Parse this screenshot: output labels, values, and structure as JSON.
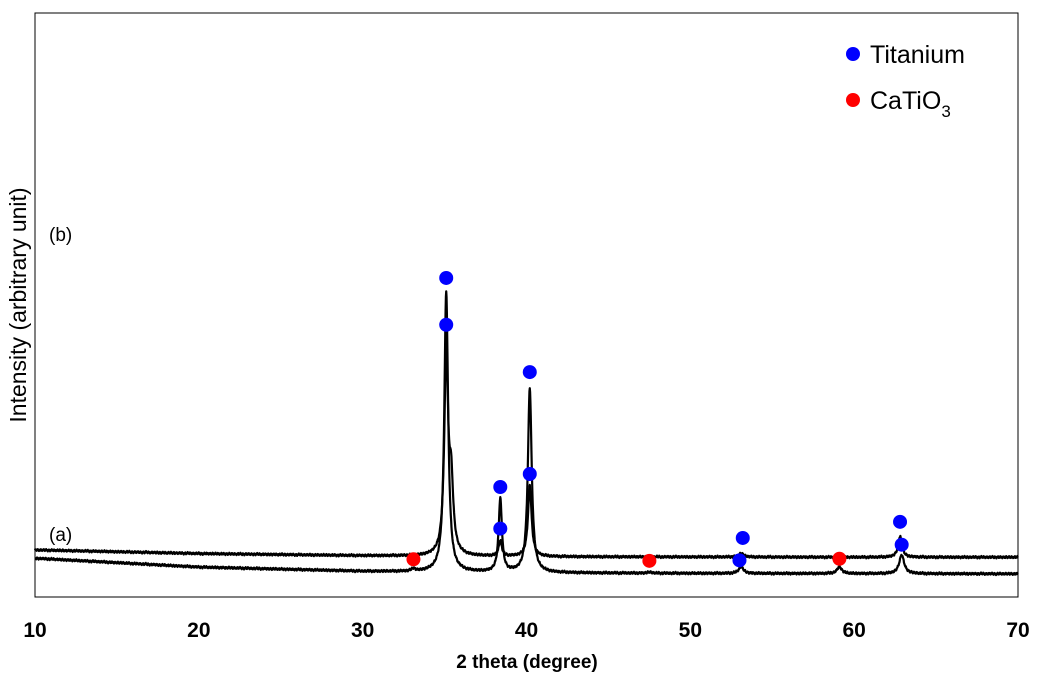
{
  "chart_data": {
    "type": "line",
    "xlabel": "2 theta (degree)",
    "ylabel": "Intensity (arbitrary unit)",
    "xlim": [
      10,
      70
    ],
    "x_ticks": [
      "10",
      "20",
      "30",
      "40",
      "50",
      "60",
      "70"
    ],
    "y_ticks": [],
    "grid": false,
    "legend_position": "top-right",
    "legend": [
      {
        "label": "Titanium",
        "color": "#0000ff"
      },
      {
        "label": "CaTiO",
        "subscript": "3",
        "color": "#ff0000"
      }
    ],
    "series": [
      {
        "name": "(b)",
        "color": "#000000",
        "baseline": [
          [
            10,
            0.54
          ],
          [
            20,
            0.47
          ],
          [
            30,
            0.43
          ],
          [
            40,
            0.41
          ],
          [
            50,
            0.405
          ],
          [
            60,
            0.4
          ],
          [
            70,
            0.4
          ]
        ],
        "peaks": [
          {
            "x": 35.1,
            "height": 3.82,
            "width": 0.14
          },
          {
            "x": 35.4,
            "height": 1.3,
            "width": 0.15
          },
          {
            "x": 38.4,
            "height": 0.3,
            "width": 0.11
          },
          {
            "x": 40.2,
            "height": 1.37,
            "width": 0.13
          },
          {
            "x": 53.1,
            "height": 0.07,
            "width": 0.18
          },
          {
            "x": 62.8,
            "height": 0.4,
            "width": 0.14
          }
        ],
        "markers": [
          {
            "x": 35.1,
            "y": 4.87,
            "phase": "Titanium"
          },
          {
            "x": 38.4,
            "y": 0.95,
            "phase": "Titanium"
          },
          {
            "x": 40.2,
            "y": 2.0,
            "phase": "Titanium"
          },
          {
            "x": 53.2,
            "y": 0.77,
            "phase": "Titanium"
          },
          {
            "x": 62.8,
            "y": 1.08,
            "phase": "Titanium"
          }
        ]
      },
      {
        "name": "(a)",
        "color": "#000000",
        "baseline": [
          [
            10,
            0.38
          ],
          [
            20,
            0.21
          ],
          [
            30,
            0.13
          ],
          [
            40,
            0.1
          ],
          [
            50,
            0.09
          ],
          [
            60,
            0.085
          ],
          [
            70,
            0.08
          ]
        ],
        "peaks": [
          {
            "x": 33.1,
            "height": 0.05,
            "width": 0.12
          },
          {
            "x": 35.1,
            "height": 5.4,
            "width": 0.14
          },
          {
            "x": 38.4,
            "height": 1.41,
            "width": 0.12
          },
          {
            "x": 40.2,
            "height": 3.55,
            "width": 0.14
          },
          {
            "x": 47.5,
            "height": 0.02,
            "width": 0.15
          },
          {
            "x": 53.1,
            "height": 0.13,
            "width": 0.17
          },
          {
            "x": 59.1,
            "height": 0.13,
            "width": 0.17
          },
          {
            "x": 62.9,
            "height": 0.36,
            "width": 0.18
          }
        ],
        "markers": [
          {
            "x": 33.1,
            "y": 0.36,
            "phase": "CaTiO3"
          },
          {
            "x": 35.1,
            "y": 5.77,
            "phase": "Titanium"
          },
          {
            "x": 38.4,
            "y": 1.75,
            "phase": "Titanium"
          },
          {
            "x": 40.2,
            "y": 3.96,
            "phase": "Titanium"
          },
          {
            "x": 47.5,
            "y": 0.33,
            "phase": "CaTiO3"
          },
          {
            "x": 53.0,
            "y": 0.34,
            "phase": "Titanium"
          },
          {
            "x": 59.1,
            "y": 0.37,
            "phase": "CaTiO3"
          },
          {
            "x": 62.9,
            "y": 0.64,
            "phase": "Titanium"
          }
        ]
      }
    ]
  }
}
